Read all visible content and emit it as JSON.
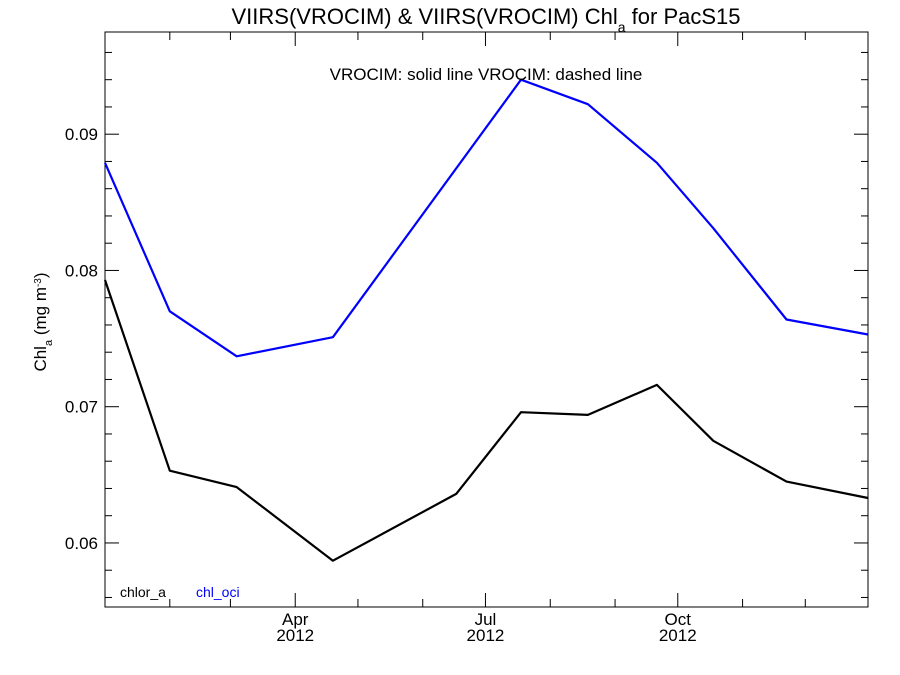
{
  "chart_data": {
    "type": "line",
    "title": {
      "main": "VIIRS(VROCIM) & VIIRS(VROCIM)  Chl",
      "sub": "a",
      "rest": " for PacS15"
    },
    "ylabel": {
      "main": "Chl",
      "sub": "a",
      "unit_pre": " (mg m",
      "sup": "-3",
      "unit_post": ")"
    },
    "annotation": "VROCIM: solid line   VROCIM: dashed line",
    "x_range": [
      "2012-01-01",
      "2012-12-31"
    ],
    "ylim": [
      0.0553,
      0.0975
    ],
    "yticks": [
      0.06,
      0.07,
      0.08,
      0.09
    ],
    "ytick_labels": [
      "0.06",
      "0.07",
      "0.08",
      "0.09"
    ],
    "xticks": [
      {
        "date": "2012-04-01",
        "month": "Apr",
        "year": "2012"
      },
      {
        "date": "2012-07-01",
        "month": "Jul",
        "year": "2012"
      },
      {
        "date": "2012-10-01",
        "month": "Oct",
        "year": "2012"
      }
    ],
    "x_minor_ticks": [
      "2012-02-01",
      "2012-03-01",
      "2012-05-01",
      "2012-06-01",
      "2012-08-01",
      "2012-09-01",
      "2012-11-01",
      "2012-12-01"
    ],
    "series": [
      {
        "name": "chlor_a",
        "color": "#000000",
        "points": [
          {
            "x": "2012-01-01",
            "y": 0.0793
          },
          {
            "x": "2012-02-01",
            "y": 0.0653
          },
          {
            "x": "2012-03-04",
            "y": 0.0641
          },
          {
            "x": "2012-04-19",
            "y": 0.0587
          },
          {
            "x": "2012-06-17",
            "y": 0.0636
          },
          {
            "x": "2012-07-18",
            "y": 0.0696
          },
          {
            "x": "2012-08-19",
            "y": 0.0694
          },
          {
            "x": "2012-09-21",
            "y": 0.0716
          },
          {
            "x": "2012-10-18",
            "y": 0.0675
          },
          {
            "x": "2012-11-22",
            "y": 0.0645
          },
          {
            "x": "2012-12-31",
            "y": 0.0633
          }
        ]
      },
      {
        "name": "chl_oci",
        "color": "#0000ff",
        "points": [
          {
            "x": "2012-01-01",
            "y": 0.0879
          },
          {
            "x": "2012-02-01",
            "y": 0.077
          },
          {
            "x": "2012-03-04",
            "y": 0.0737
          },
          {
            "x": "2012-04-19",
            "y": 0.0751
          },
          {
            "x": "2012-07-18",
            "y": 0.094
          },
          {
            "x": "2012-08-19",
            "y": 0.0922
          },
          {
            "x": "2012-09-21",
            "y": 0.0879
          },
          {
            "x": "2012-10-18",
            "y": 0.0831
          },
          {
            "x": "2012-11-22",
            "y": 0.0764
          },
          {
            "x": "2012-12-31",
            "y": 0.0753
          }
        ]
      }
    ],
    "legend_position": "bottom-left",
    "grid": false
  }
}
